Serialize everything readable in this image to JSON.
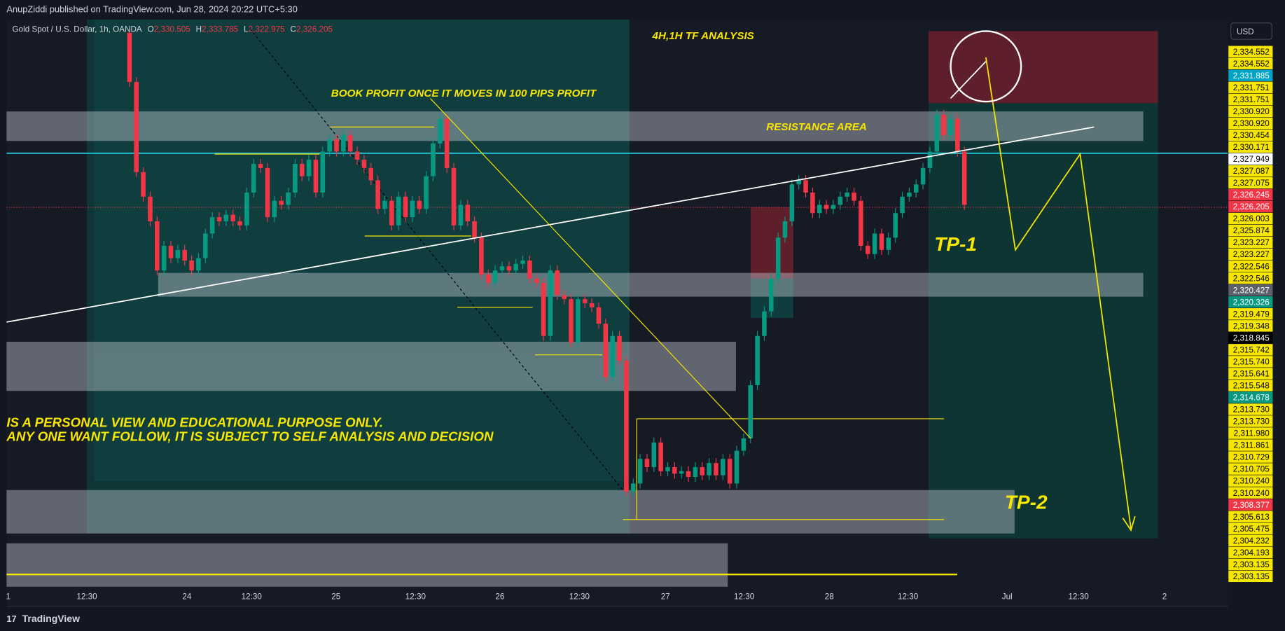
{
  "header": {
    "publisher": "AnupZiddi published on TradingView.com, Jun 28, 2024 20:22 UTC+5:30"
  },
  "symbol": {
    "name": "Gold Spot / U.S. Dollar, 1h, OANDA",
    "o_label": "O",
    "open": "2,330.505",
    "h_label": "H",
    "high": "2,333.785",
    "l_label": "L",
    "low": "2,322.975",
    "c_label": "C",
    "close": "2,326.205"
  },
  "annotations": {
    "timeframe": "4H,1H TF ANALYSIS",
    "book_profit": "BOOK PROFIT ONCE IT MOVES IN 100 PIPS PROFIT",
    "resistance": "RESISTANCE AREA",
    "tp1": "TP-1",
    "tp2": "TP-2",
    "disclaimer_1": "IS A PERSONAL VIEW AND EDUCATIONAL PURPOSE ONLY.",
    "disclaimer_2": "ANY ONE WANT FOLLOW,  IT IS SUBJECT TO  SELF ANALYSIS AND DECISION"
  },
  "currency": "USD",
  "price_labels": [
    {
      "text": "2,334.552",
      "bg": "#f7e600",
      "fg": "#000"
    },
    {
      "text": "2,334.552",
      "bg": "#f7e600",
      "fg": "#000"
    },
    {
      "text": "2,331.885",
      "bg": "#00a3c4",
      "fg": "#fff"
    },
    {
      "text": "2,331.751",
      "bg": "#f7e600",
      "fg": "#000"
    },
    {
      "text": "2,331.751",
      "bg": "#f7e600",
      "fg": "#000"
    },
    {
      "text": "2,330.920",
      "bg": "#f7e600",
      "fg": "#000"
    },
    {
      "text": "2,330.920",
      "bg": "#f7e600",
      "fg": "#000"
    },
    {
      "text": "2,330.454",
      "bg": "#f7e600",
      "fg": "#000"
    },
    {
      "text": "2,330.171",
      "bg": "#f7e600",
      "fg": "#000"
    },
    {
      "text": "2,327.949",
      "bg": "#ffffff",
      "fg": "#000"
    },
    {
      "text": "2,327.087",
      "bg": "#f7e600",
      "fg": "#000"
    },
    {
      "text": "2,327.075",
      "bg": "#f7e600",
      "fg": "#000"
    },
    {
      "text": "2,326.245",
      "bg": "#f23645",
      "fg": "#fff"
    },
    {
      "text": "2,326.205",
      "bg": "#f23645",
      "fg": "#fff"
    },
    {
      "text": "2,326.003",
      "bg": "#f7e600",
      "fg": "#000"
    },
    {
      "text": "2,325.874",
      "bg": "#f7e600",
      "fg": "#000"
    },
    {
      "text": "2,323.227",
      "bg": "#f7e600",
      "fg": "#000"
    },
    {
      "text": "2,323.227",
      "bg": "#f7e600",
      "fg": "#000"
    },
    {
      "text": "2,322.546",
      "bg": "#f7e600",
      "fg": "#000"
    },
    {
      "text": "2,322.546",
      "bg": "#f7e600",
      "fg": "#000"
    },
    {
      "text": "2,320.427",
      "bg": "#5d606b",
      "fg": "#fff"
    },
    {
      "text": "2,320.326",
      "bg": "#089981",
      "fg": "#fff"
    },
    {
      "text": "2,319.479",
      "bg": "#f7e600",
      "fg": "#000"
    },
    {
      "text": "2,319.348",
      "bg": "#f7e600",
      "fg": "#000"
    },
    {
      "text": "2,318.845",
      "bg": "#000000",
      "fg": "#fff"
    },
    {
      "text": "2,315.742",
      "bg": "#f7e600",
      "fg": "#000"
    },
    {
      "text": "2,315.740",
      "bg": "#f7e600",
      "fg": "#000"
    },
    {
      "text": "2,315.641",
      "bg": "#f7e600",
      "fg": "#000"
    },
    {
      "text": "2,315.548",
      "bg": "#f7e600",
      "fg": "#000"
    },
    {
      "text": "2,314.678",
      "bg": "#089981",
      "fg": "#fff"
    },
    {
      "text": "2,313.730",
      "bg": "#f7e600",
      "fg": "#000"
    },
    {
      "text": "2,313.730",
      "bg": "#f7e600",
      "fg": "#000"
    },
    {
      "text": "2,311.980",
      "bg": "#f7e600",
      "fg": "#000"
    },
    {
      "text": "2,311.861",
      "bg": "#f7e600",
      "fg": "#000"
    },
    {
      "text": "2,310.729",
      "bg": "#f7e600",
      "fg": "#000"
    },
    {
      "text": "2,310.705",
      "bg": "#f7e600",
      "fg": "#000"
    },
    {
      "text": "2,310.240",
      "bg": "#f7e600",
      "fg": "#000"
    },
    {
      "text": "2,310.240",
      "bg": "#f7e600",
      "fg": "#000"
    },
    {
      "text": "2,308.377",
      "bg": "#f23645",
      "fg": "#fff"
    },
    {
      "text": "2,305.613",
      "bg": "#f7e600",
      "fg": "#000"
    },
    {
      "text": "2,305.475",
      "bg": "#f7e600",
      "fg": "#000"
    },
    {
      "text": "2,304.232",
      "bg": "#f7e600",
      "fg": "#000"
    },
    {
      "text": "2,304.193",
      "bg": "#f7e600",
      "fg": "#000"
    },
    {
      "text": "2,303.135",
      "bg": "#f7e600",
      "fg": "#000"
    },
    {
      "text": "2,303.135",
      "bg": "#f7e600",
      "fg": "#000"
    }
  ],
  "time_labels": [
    "1",
    "12:30",
    "24",
    "12:30",
    "25",
    "12:30",
    "26",
    "12:30",
    "27",
    "12:30",
    "28",
    "12:30",
    "Jul",
    "12:30",
    "2"
  ],
  "footer": {
    "brand": "TradingView"
  }
}
